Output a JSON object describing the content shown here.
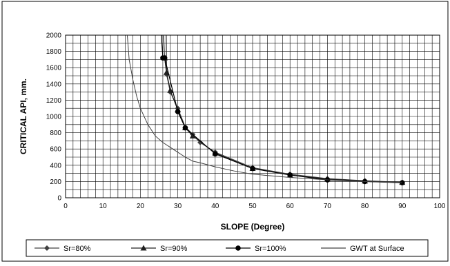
{
  "chart_data": {
    "type": "line",
    "title": "",
    "xlabel": "SLOPE (Degree)",
    "ylabel": "CRITICAL API, mm.",
    "xlim": [
      0,
      100
    ],
    "ylim": [
      0,
      2000
    ],
    "x_ticks": [
      0,
      10,
      20,
      30,
      40,
      50,
      60,
      70,
      80,
      90,
      100
    ],
    "y_ticks": [
      0,
      200,
      400,
      600,
      800,
      1000,
      1200,
      1400,
      1600,
      1800,
      2000
    ],
    "x_tick_labels": [
      "0",
      "10",
      "20",
      "30",
      "40",
      "50",
      "60",
      "70",
      "80",
      "90",
      "100"
    ],
    "y_tick_labels": [
      "0",
      "200",
      "400",
      "600",
      "800",
      "1000",
      "1200",
      "1400",
      "1600",
      "1800",
      "2000"
    ],
    "grid": true,
    "legend_position": "bottom",
    "series": [
      {
        "name": "Sr=80%",
        "marker": "diamond",
        "color": "#404040",
        "x": [
          26.5,
          27,
          28,
          30,
          32,
          34,
          36,
          40,
          50,
          60,
          70,
          80,
          90
        ],
        "y": [
          1720,
          1520,
          1300,
          1100,
          870,
          780,
          680,
          560,
          370,
          290,
          235,
          210,
          190
        ]
      },
      {
        "name": "Sr=90%",
        "marker": "triangle",
        "color": "#202020",
        "x": [
          26.5,
          27,
          28,
          30,
          32,
          34,
          40,
          50,
          60,
          70,
          80,
          90
        ],
        "y": [
          1720,
          1540,
          1320,
          1080,
          860,
          760,
          550,
          360,
          280,
          230,
          205,
          190
        ]
      },
      {
        "name": "Sr=100%",
        "marker": "circle",
        "color": "#000000",
        "x": [
          26,
          26.5,
          30,
          32,
          40,
          50,
          60,
          70,
          80,
          90
        ],
        "y": [
          1720,
          1720,
          1060,
          860,
          540,
          360,
          280,
          220,
          200,
          185
        ]
      },
      {
        "name": "GWT at Surface",
        "marker": "none",
        "color": "#404040",
        "x": [
          16.5,
          17,
          18,
          19,
          20,
          22,
          24,
          26,
          28,
          30,
          32,
          34,
          36,
          40,
          45,
          50,
          60,
          70,
          80,
          90
        ],
        "y": [
          2000,
          1700,
          1450,
          1250,
          1100,
          900,
          760,
          680,
          620,
          560,
          500,
          450,
          430,
          380,
          330,
          290,
          250,
          220,
          200,
          185
        ]
      }
    ],
    "series_curve_tops": {
      "Sr=80%": [
        [
          26.2,
          2000
        ],
        [
          26.5,
          1720
        ]
      ],
      "Sr=90%": [
        [
          26.9,
          2000
        ],
        [
          27,
          1540
        ]
      ],
      "Sr=100%": [
        [
          25.6,
          2000
        ],
        [
          26,
          1720
        ]
      ]
    }
  }
}
